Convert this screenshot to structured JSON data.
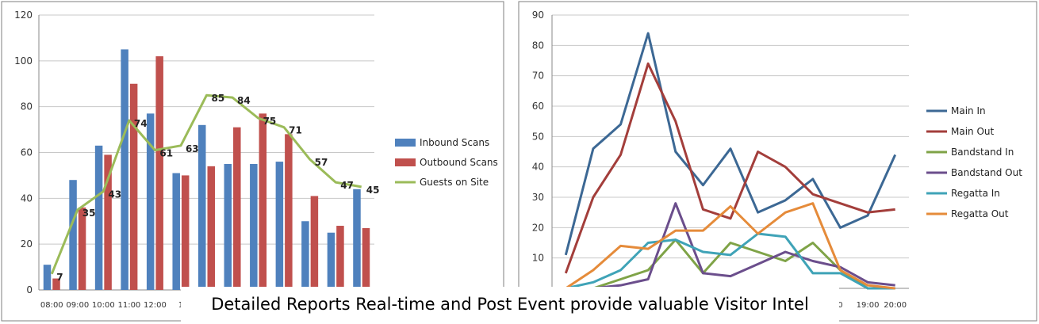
{
  "caption": "Detailed Reports Real-time and Post Event provide valuable Visitor Intel",
  "colors": {
    "inbound": "#4f81bd",
    "outbound": "#c0504d",
    "guests": "#9bbb59",
    "main_in": "#3c6894",
    "main_out": "#a33e3b",
    "bandstand_in": "#7fa347",
    "bandstand_out": "#6b4e8c",
    "regatta_in": "#3fa3b7",
    "regatta_out": "#e58b3a",
    "gridline": "#c8c8c8",
    "frame": "#7f7f7f"
  },
  "chart_data": [
    {
      "type": "bar",
      "categories": [
        "08:00",
        "09:00",
        "10:00",
        "11:00",
        "12:00",
        "1",
        "",
        "",
        "",
        "",
        "",
        "",
        ""
      ],
      "ylim": [
        0,
        120
      ],
      "yticks": [
        0,
        20,
        40,
        60,
        80,
        100,
        120
      ],
      "series": [
        {
          "name": "Inbound Scans",
          "type": "bar",
          "values": [
            11,
            48,
            63,
            105,
            77,
            51,
            72,
            55,
            55,
            56,
            30,
            25,
            44
          ]
        },
        {
          "name": "Outbound Scans",
          "type": "bar",
          "values": [
            5,
            36,
            59,
            90,
            102,
            50,
            54,
            71,
            77,
            68,
            41,
            28,
            27
          ]
        },
        {
          "name": "Guests on Site",
          "type": "line",
          "values": [
            7,
            35,
            43,
            74,
            61,
            63,
            85,
            84,
            75,
            71,
            57,
            47,
            45
          ]
        }
      ],
      "data_labels": [
        "7",
        "35",
        "43",
        "74",
        "61",
        "63",
        "85",
        "84",
        "75",
        "71",
        "57",
        "47",
        "45"
      ],
      "legend": "right"
    },
    {
      "type": "line",
      "categories": [
        "",
        "",
        "",
        "",
        "",
        "",
        "",
        "",
        "",
        "",
        "0",
        "19:00",
        "20:00"
      ],
      "ylim": [
        0,
        90
      ],
      "yticks": [
        10,
        20,
        30,
        40,
        50,
        60,
        70,
        80,
        90
      ],
      "series": [
        {
          "name": "Main In",
          "values": [
            11,
            46,
            54,
            84,
            45,
            34,
            46,
            25,
            29,
            36,
            20,
            24,
            44
          ]
        },
        {
          "name": "Main Out",
          "values": [
            5,
            30,
            44,
            74,
            55,
            26,
            23,
            45,
            40,
            31,
            28,
            25,
            26
          ]
        },
        {
          "name": "Bandstand In",
          "values": [
            0,
            0,
            3,
            6,
            16,
            5,
            15,
            12,
            9,
            15,
            6,
            0,
            0
          ]
        },
        {
          "name": "Bandstand Out",
          "values": [
            0,
            0,
            1,
            3,
            28,
            5,
            4,
            8,
            12,
            9,
            7,
            2,
            1
          ]
        },
        {
          "name": "Regatta In",
          "values": [
            0,
            2,
            6,
            15,
            16,
            12,
            11,
            18,
            17,
            5,
            5,
            0,
            0
          ]
        },
        {
          "name": "Regatta Out",
          "values": [
            0,
            6,
            14,
            13,
            19,
            19,
            27,
            18,
            25,
            28,
            6,
            1,
            0
          ]
        }
      ],
      "legend": "right"
    }
  ]
}
